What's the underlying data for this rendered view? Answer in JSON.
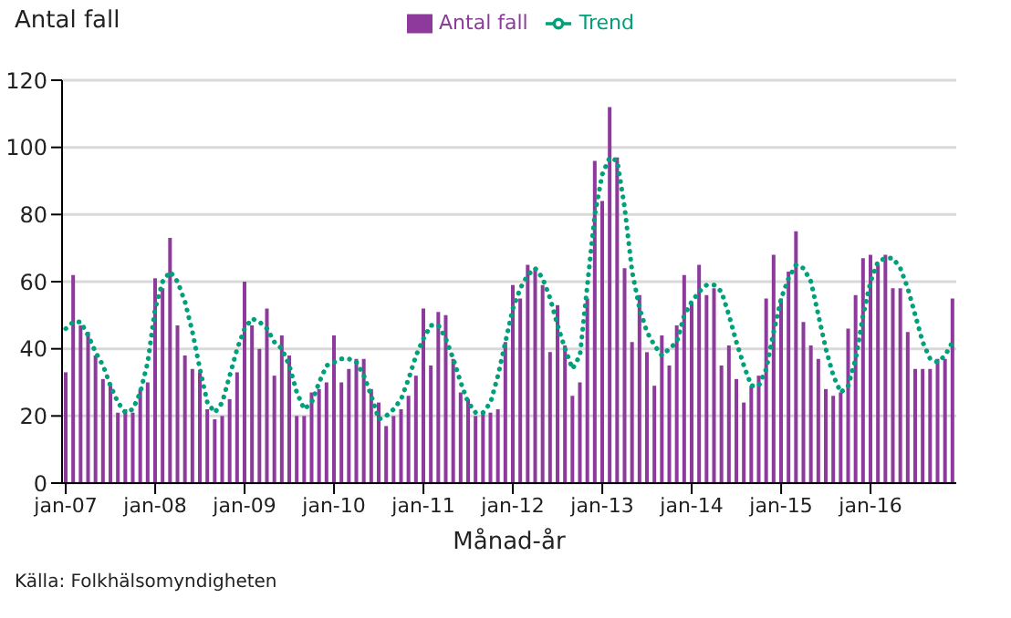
{
  "chart_data": {
    "type": "bar",
    "ylabel": "Antal fall",
    "xlabel": "Månad-år",
    "annotations": [
      "Källa: Folkhälsomyndigheten"
    ],
    "categories": [
      "jan-07",
      null,
      null,
      null,
      null,
      null,
      null,
      null,
      null,
      null,
      null,
      null,
      "jan-08",
      null,
      null,
      null,
      null,
      null,
      null,
      null,
      null,
      null,
      null,
      null,
      "jan-09",
      null,
      null,
      null,
      null,
      null,
      null,
      null,
      null,
      null,
      null,
      null,
      "jan-10",
      null,
      null,
      null,
      null,
      null,
      null,
      null,
      null,
      null,
      null,
      null,
      "jan-11",
      null,
      null,
      null,
      null,
      null,
      null,
      null,
      null,
      null,
      null,
      null,
      "jan-12",
      null,
      null,
      null,
      null,
      null,
      null,
      null,
      null,
      null,
      null,
      null,
      "jan-13",
      null,
      null,
      null,
      null,
      null,
      null,
      null,
      null,
      null,
      null,
      null,
      "jan-14",
      null,
      null,
      null,
      null,
      null,
      null,
      null,
      null,
      null,
      null,
      null,
      "jan-15",
      null,
      null,
      null,
      null,
      null,
      null,
      null,
      null,
      null,
      null,
      null,
      "jan-16",
      null,
      null,
      null,
      null,
      null,
      null,
      null,
      null,
      null,
      null,
      null
    ],
    "series": [
      {
        "name": "Antal fall",
        "color": "#8e3a9d",
        "values": [
          33,
          62,
          47,
          45,
          38,
          31,
          29,
          21,
          22,
          21,
          28,
          30,
          61,
          58,
          73,
          47,
          38,
          34,
          33,
          22,
          19,
          20,
          25,
          33,
          60,
          47,
          40,
          52,
          32,
          44,
          38,
          20,
          20,
          27,
          28,
          30,
          44,
          30,
          34,
          37,
          37,
          28,
          24,
          17,
          20,
          22,
          26,
          32,
          52,
          35,
          51,
          50,
          37,
          27,
          25,
          20,
          21,
          21,
          22,
          42,
          59,
          55,
          65,
          64,
          59,
          39,
          53,
          41,
          26,
          30,
          55,
          96,
          84,
          112,
          97,
          64,
          42,
          56,
          39,
          29,
          44,
          35,
          47,
          62,
          54,
          65,
          56,
          58,
          35,
          41,
          31,
          24,
          29,
          32,
          55,
          68,
          55,
          63,
          75,
          48,
          41,
          37,
          28,
          26,
          27,
          46,
          56,
          67,
          68,
          65,
          68,
          58,
          58,
          45,
          34,
          34,
          34,
          37,
          37,
          55
        ]
      },
      {
        "name": "Trend",
        "type": "line",
        "color": "#00a07a",
        "line_style": "dotted",
        "values": [
          46,
          48,
          48,
          44,
          39,
          35,
          29,
          24,
          21,
          22,
          27,
          36,
          52,
          60,
          63,
          60,
          54,
          45,
          34,
          24,
          21,
          24,
          32,
          40,
          46,
          49,
          48,
          46,
          42,
          40,
          35,
          27,
          22,
          24,
          30,
          35,
          36,
          37,
          37,
          36,
          32,
          26,
          19,
          20,
          22,
          25,
          31,
          38,
          43,
          47,
          47,
          43,
          37,
          30,
          24,
          21,
          21,
          24,
          32,
          42,
          52,
          58,
          62,
          64,
          61,
          55,
          47,
          40,
          34,
          38,
          59,
          80,
          92,
          97,
          96,
          82,
          63,
          52,
          45,
          41,
          38,
          40,
          42,
          50,
          54,
          57,
          59,
          59,
          57,
          50,
          42,
          35,
          29,
          29,
          34,
          45,
          55,
          61,
          65,
          64,
          60,
          50,
          40,
          32,
          27,
          29,
          37,
          50,
          60,
          66,
          67,
          67,
          64,
          58,
          50,
          42,
          37,
          36,
          38,
          42
        ]
      }
    ],
    "ylim": [
      0,
      120
    ],
    "yticks": [
      0,
      20,
      40,
      60,
      80,
      100,
      120
    ],
    "grid": "y",
    "legend": "top"
  }
}
